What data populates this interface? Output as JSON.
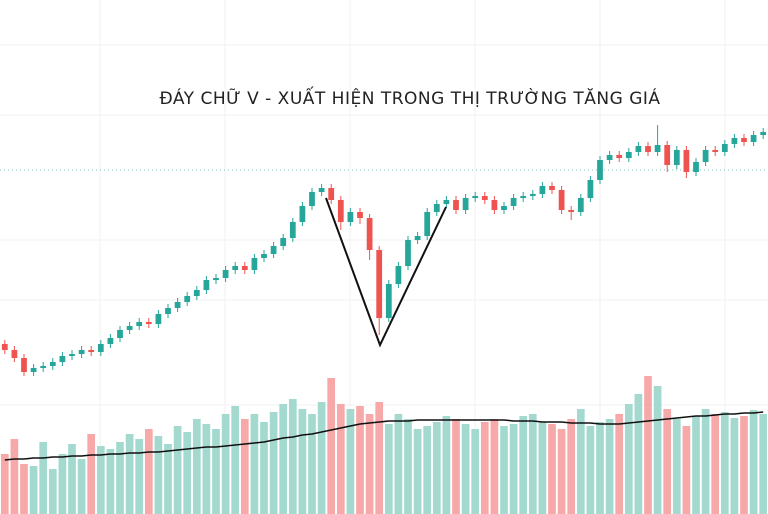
{
  "chart_data": {
    "type": "candlestick",
    "title": "ĐÁY CHỮ V - XUẤT HIỆN TRONG THỊ TRƯỜNG TĂNG GIÁ",
    "open": [
      56,
      50,
      42,
      28,
      32,
      34,
      38,
      44,
      46,
      50,
      48,
      56,
      62,
      70,
      74,
      78,
      76,
      86,
      92,
      98,
      104,
      110,
      120,
      122,
      130,
      134,
      130,
      142,
      146,
      154,
      162,
      178,
      194,
      208,
      212,
      200,
      178,
      188,
      182,
      150,
      82,
      116,
      134,
      160,
      164,
      188,
      196,
      200,
      190,
      202,
      204,
      200,
      190,
      194,
      202,
      204,
      206,
      214,
      210,
      190,
      188,
      202,
      220,
      240,
      245,
      242,
      248,
      254,
      248,
      255,
      235,
      250,
      228,
      238,
      250,
      248,
      256,
      262,
      258,
      265
    ],
    "high": [
      60,
      54,
      46,
      36,
      38,
      42,
      48,
      50,
      54,
      54,
      60,
      66,
      74,
      78,
      82,
      82,
      90,
      96,
      102,
      108,
      114,
      124,
      126,
      134,
      138,
      138,
      146,
      150,
      158,
      166,
      182,
      198,
      212,
      216,
      216,
      204,
      192,
      192,
      186,
      154,
      120,
      138,
      164,
      168,
      192,
      200,
      204,
      204,
      206,
      208,
      208,
      204,
      198,
      206,
      208,
      210,
      218,
      218,
      214,
      194,
      206,
      224,
      244,
      249,
      249,
      252,
      258,
      258,
      275,
      259,
      254,
      254,
      242,
      254,
      254,
      260,
      266,
      266,
      269,
      272
    ],
    "low": [
      46,
      38,
      24,
      24,
      28,
      30,
      34,
      40,
      42,
      44,
      44,
      52,
      58,
      66,
      70,
      72,
      72,
      82,
      88,
      94,
      100,
      106,
      116,
      118,
      126,
      126,
      126,
      138,
      142,
      150,
      158,
      174,
      190,
      204,
      196,
      170,
      174,
      176,
      140,
      65,
      78,
      112,
      130,
      156,
      160,
      184,
      192,
      186,
      186,
      198,
      196,
      186,
      186,
      190,
      198,
      200,
      202,
      206,
      186,
      180,
      184,
      198,
      216,
      236,
      238,
      238,
      244,
      244,
      244,
      228,
      231,
      222,
      224,
      234,
      244,
      244,
      252,
      254,
      254,
      261
    ],
    "close": [
      50,
      42,
      28,
      32,
      34,
      38,
      44,
      46,
      50,
      48,
      56,
      62,
      70,
      74,
      78,
      76,
      86,
      92,
      98,
      104,
      110,
      120,
      122,
      130,
      134,
      130,
      142,
      146,
      154,
      162,
      178,
      194,
      208,
      212,
      200,
      178,
      188,
      182,
      150,
      82,
      116,
      134,
      160,
      164,
      188,
      196,
      200,
      190,
      202,
      204,
      200,
      190,
      194,
      202,
      204,
      206,
      214,
      210,
      190,
      188,
      202,
      220,
      240,
      245,
      242,
      248,
      254,
      248,
      255,
      235,
      250,
      228,
      238,
      250,
      248,
      256,
      262,
      258,
      265,
      268
    ],
    "volume": [
      60,
      75,
      50,
      48,
      72,
      45,
      60,
      70,
      55,
      80,
      68,
      65,
      72,
      80,
      75,
      85,
      78,
      70,
      88,
      82,
      95,
      90,
      85,
      100,
      108,
      95,
      100,
      92,
      102,
      110,
      115,
      105,
      100,
      112,
      136,
      110,
      105,
      108,
      100,
      112,
      90,
      100,
      95,
      85,
      88,
      92,
      98,
      95,
      90,
      85,
      92,
      95,
      88,
      90,
      98,
      100,
      92,
      90,
      85,
      95,
      105,
      88,
      92,
      95,
      100,
      110,
      120,
      138,
      128,
      105,
      95,
      88,
      98,
      105,
      100,
      102,
      96,
      98,
      104,
      100
    ],
    "volume_ma": [
      54,
      55,
      55,
      56,
      56,
      57,
      57,
      58,
      58,
      59,
      59,
      60,
      60,
      61,
      61,
      62,
      62,
      63,
      64,
      65,
      66,
      67,
      67,
      68,
      69,
      70,
      71,
      72,
      74,
      76,
      77,
      79,
      80,
      82,
      84,
      86,
      88,
      90,
      91,
      92,
      93,
      93,
      93,
      94,
      94,
      94,
      94,
      94,
      94,
      94,
      94,
      94,
      94,
      93,
      93,
      93,
      92,
      92,
      92,
      91,
      91,
      91,
      90,
      90,
      90,
      91,
      92,
      93,
      94,
      95,
      96,
      97,
      98,
      98,
      99,
      100,
      100,
      101,
      101,
      102
    ],
    "ylim": [
      0,
      400
    ],
    "y2lim": [
      0,
      150
    ],
    "up_color": "#26a69a",
    "down_color": "#ef5350",
    "volume_up_color": "#a3d9cf",
    "volume_down_color": "#f7a8a8",
    "ma_color": "#111111"
  }
}
